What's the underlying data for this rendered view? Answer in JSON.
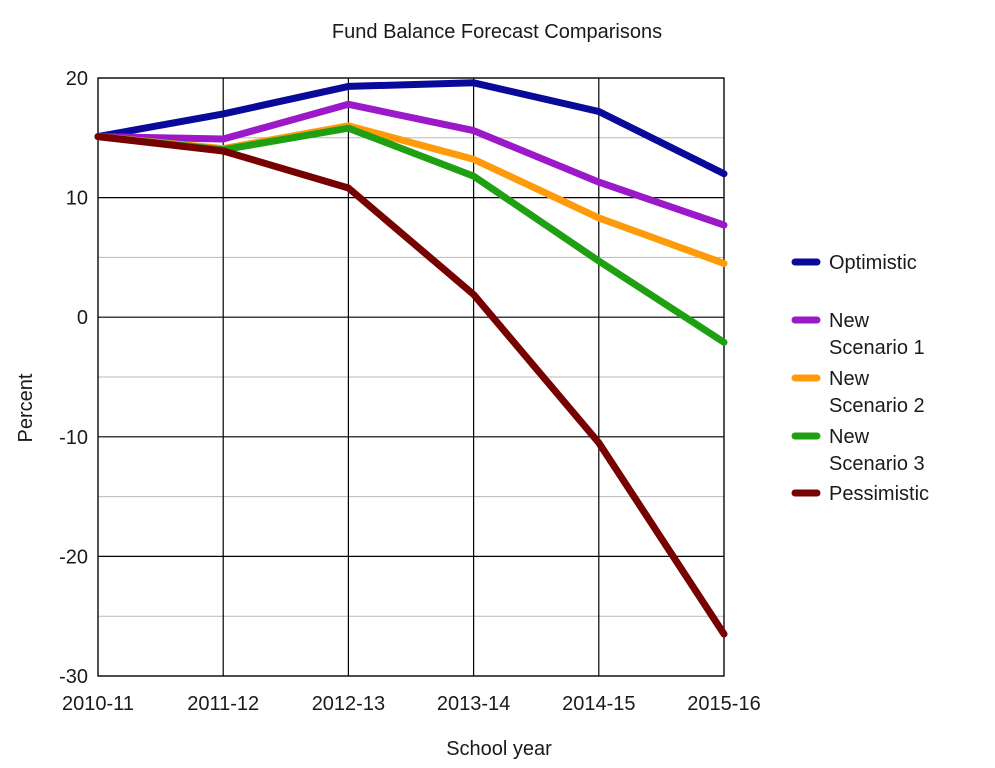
{
  "chart_data": {
    "type": "line",
    "title": "Fund Balance Forecast Comparisons",
    "xlabel": "School year",
    "ylabel": "Percent",
    "categories": [
      "2010-11",
      "2011-12",
      "2012-13",
      "2013-14",
      "2014-15",
      "2015-16"
    ],
    "ylim": [
      -30,
      20
    ],
    "yticks": [
      20,
      10,
      0,
      -10,
      -20,
      -30
    ],
    "ytick_labels": [
      "20",
      "10",
      "0",
      "-10",
      "-20",
      "-30"
    ],
    "grid": true,
    "legend_position": "right",
    "series": [
      {
        "name": "Optimistic",
        "label_lines": [
          "Optimistic"
        ],
        "color": "#0a0a9a",
        "values": [
          15.1,
          17.0,
          19.3,
          19.6,
          17.2,
          12.0
        ]
      },
      {
        "name": "New Scenario 1",
        "label_lines": [
          "New",
          "Scenario 1"
        ],
        "color": "#9b19c9",
        "values": [
          15.1,
          14.9,
          17.8,
          15.6,
          11.3,
          7.7
        ]
      },
      {
        "name": "New Scenario 2",
        "label_lines": [
          "New",
          "Scenario 2"
        ],
        "color": "#ff9b0a",
        "values": [
          15.1,
          14.1,
          16.0,
          13.2,
          8.3,
          4.5
        ]
      },
      {
        "name": "New Scenario 3",
        "label_lines": [
          "New",
          "Scenario 3"
        ],
        "color": "#1ea012",
        "values": [
          15.1,
          14.0,
          15.8,
          11.8,
          4.7,
          -2.1
        ]
      },
      {
        "name": "Pessimistic",
        "label_lines": [
          "Pessimistic"
        ],
        "color": "#770000",
        "values": [
          15.1,
          13.9,
          10.8,
          1.9,
          -10.5,
          -26.5
        ]
      }
    ]
  }
}
